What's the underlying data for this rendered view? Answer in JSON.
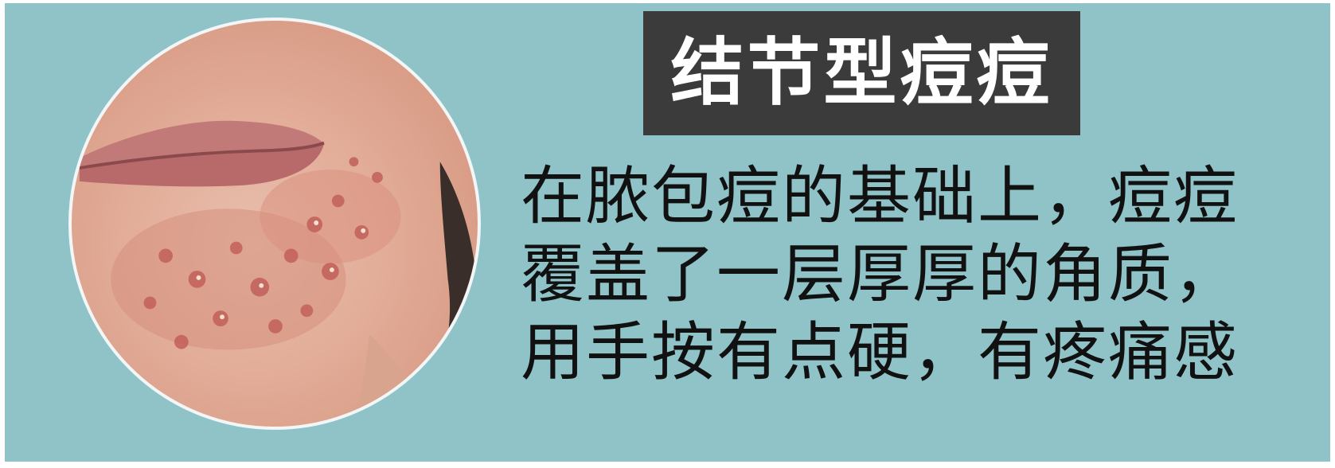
{
  "title": "结节型痘痘",
  "description_lines": [
    "在脓包痘的基础上，痘痘",
    "覆盖了一层厚厚的角质，",
    "用手按有点硬，有疼痛感"
  ],
  "colors": {
    "background": "#8fc3c8",
    "title_box": "#3b3b3b",
    "title_text": "#ffffff",
    "body_text": "#111111"
  }
}
